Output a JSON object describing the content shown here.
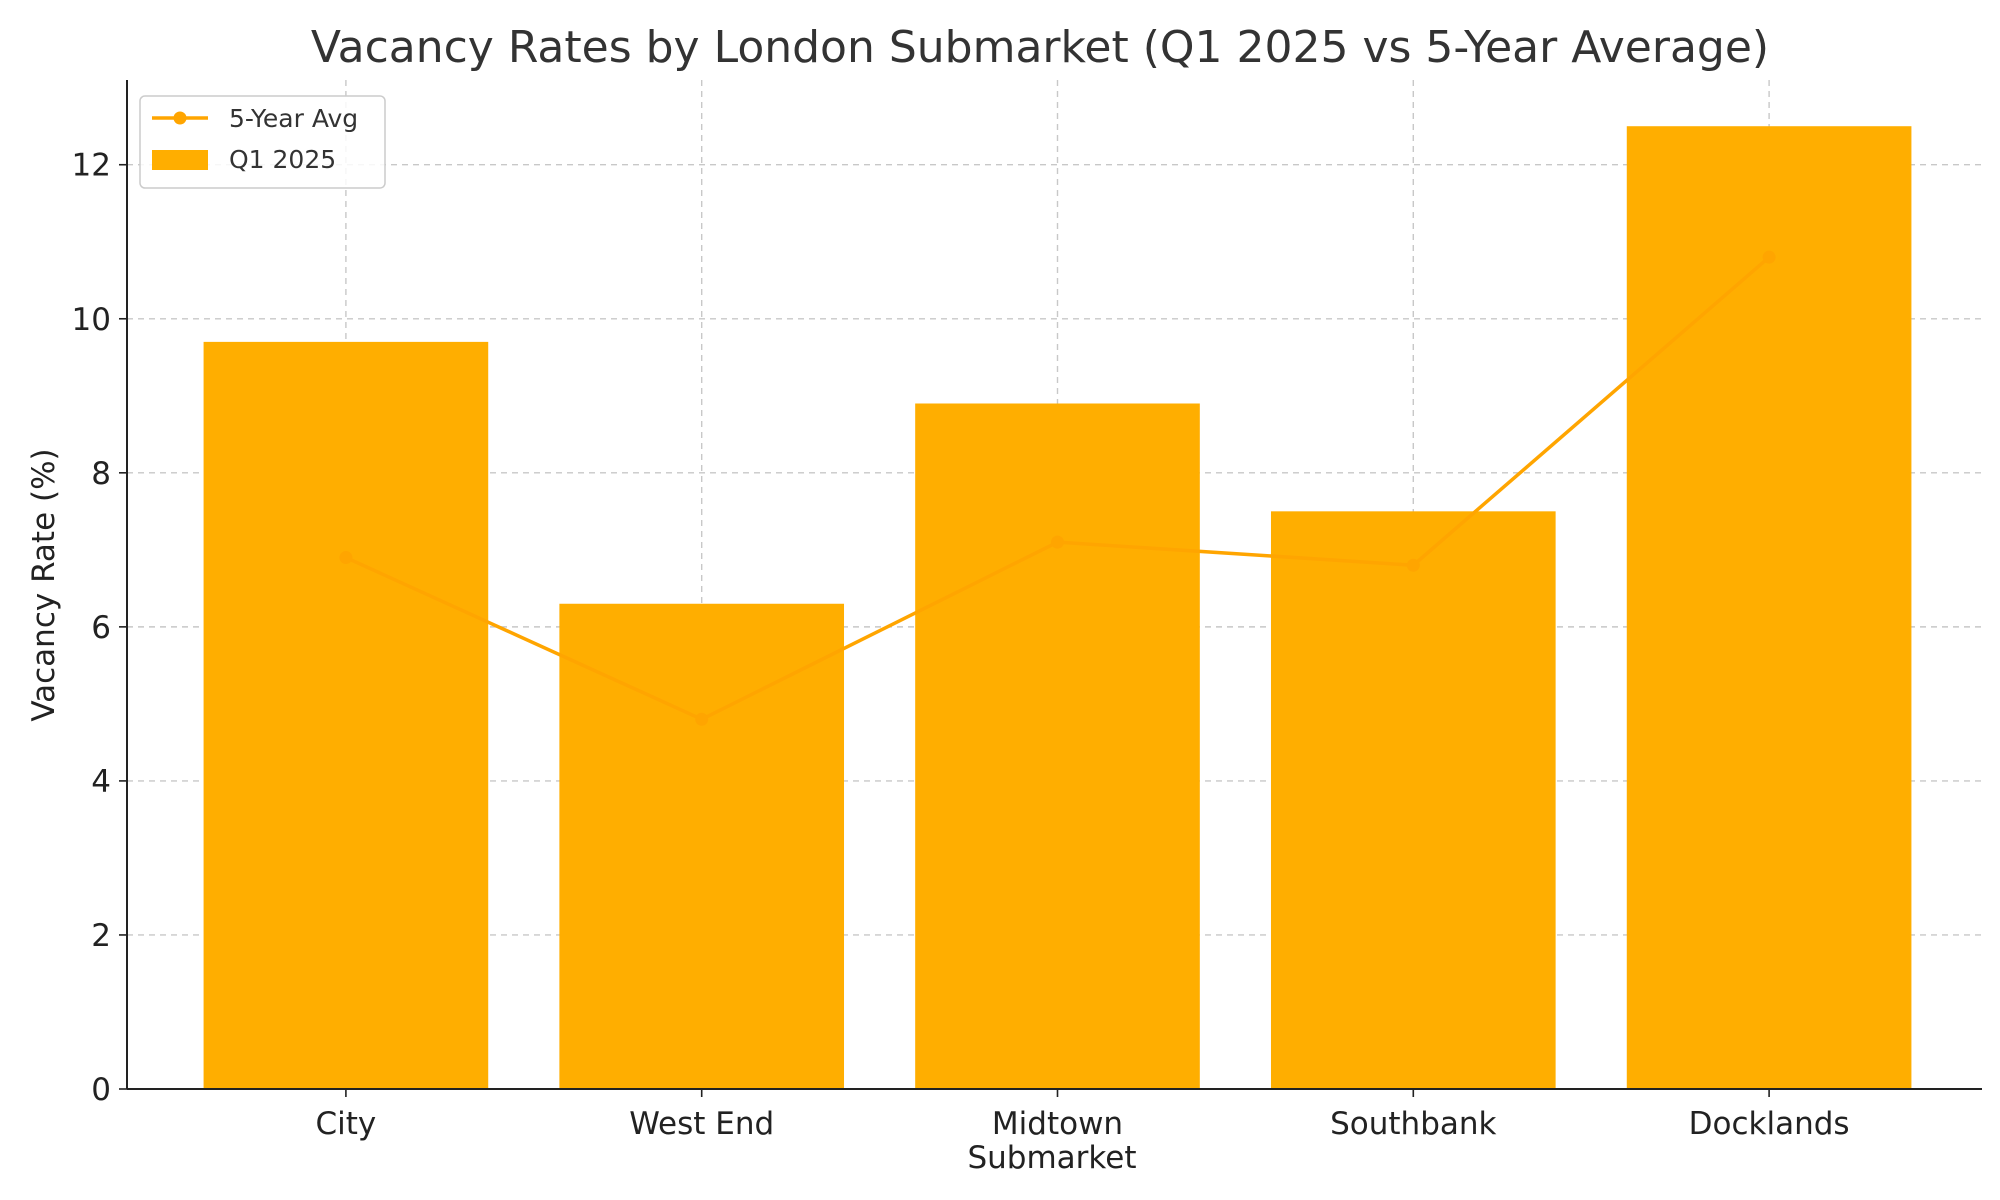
{
  "chart_data": {
    "type": "bar",
    "title": "Vacancy Rates by London Submarket (Q1 2025 vs 5-Year Average)",
    "xlabel": "Submarket",
    "ylabel": "Vacancy Rate (%)",
    "categories": [
      "City",
      "West End",
      "Midtown",
      "Southbank",
      "Docklands"
    ],
    "ylim": [
      0,
      13.1
    ],
    "yticks": [
      0,
      2,
      4,
      6,
      8,
      10,
      12
    ],
    "ytick_labels": [
      "0",
      "2",
      "4",
      "6",
      "8",
      "10",
      "12"
    ],
    "grid": true,
    "legend_position": "top-left",
    "series": [
      {
        "name": "Q1 2025",
        "type": "bar",
        "color": "#FFAE00",
        "values": [
          9.7,
          6.3,
          8.9,
          7.5,
          12.5
        ]
      },
      {
        "name": "5-Year Avg",
        "type": "line",
        "marker": "circle",
        "color": "#FFA500",
        "values": [
          6.9,
          4.8,
          7.1,
          6.8,
          10.8
        ]
      }
    ]
  }
}
